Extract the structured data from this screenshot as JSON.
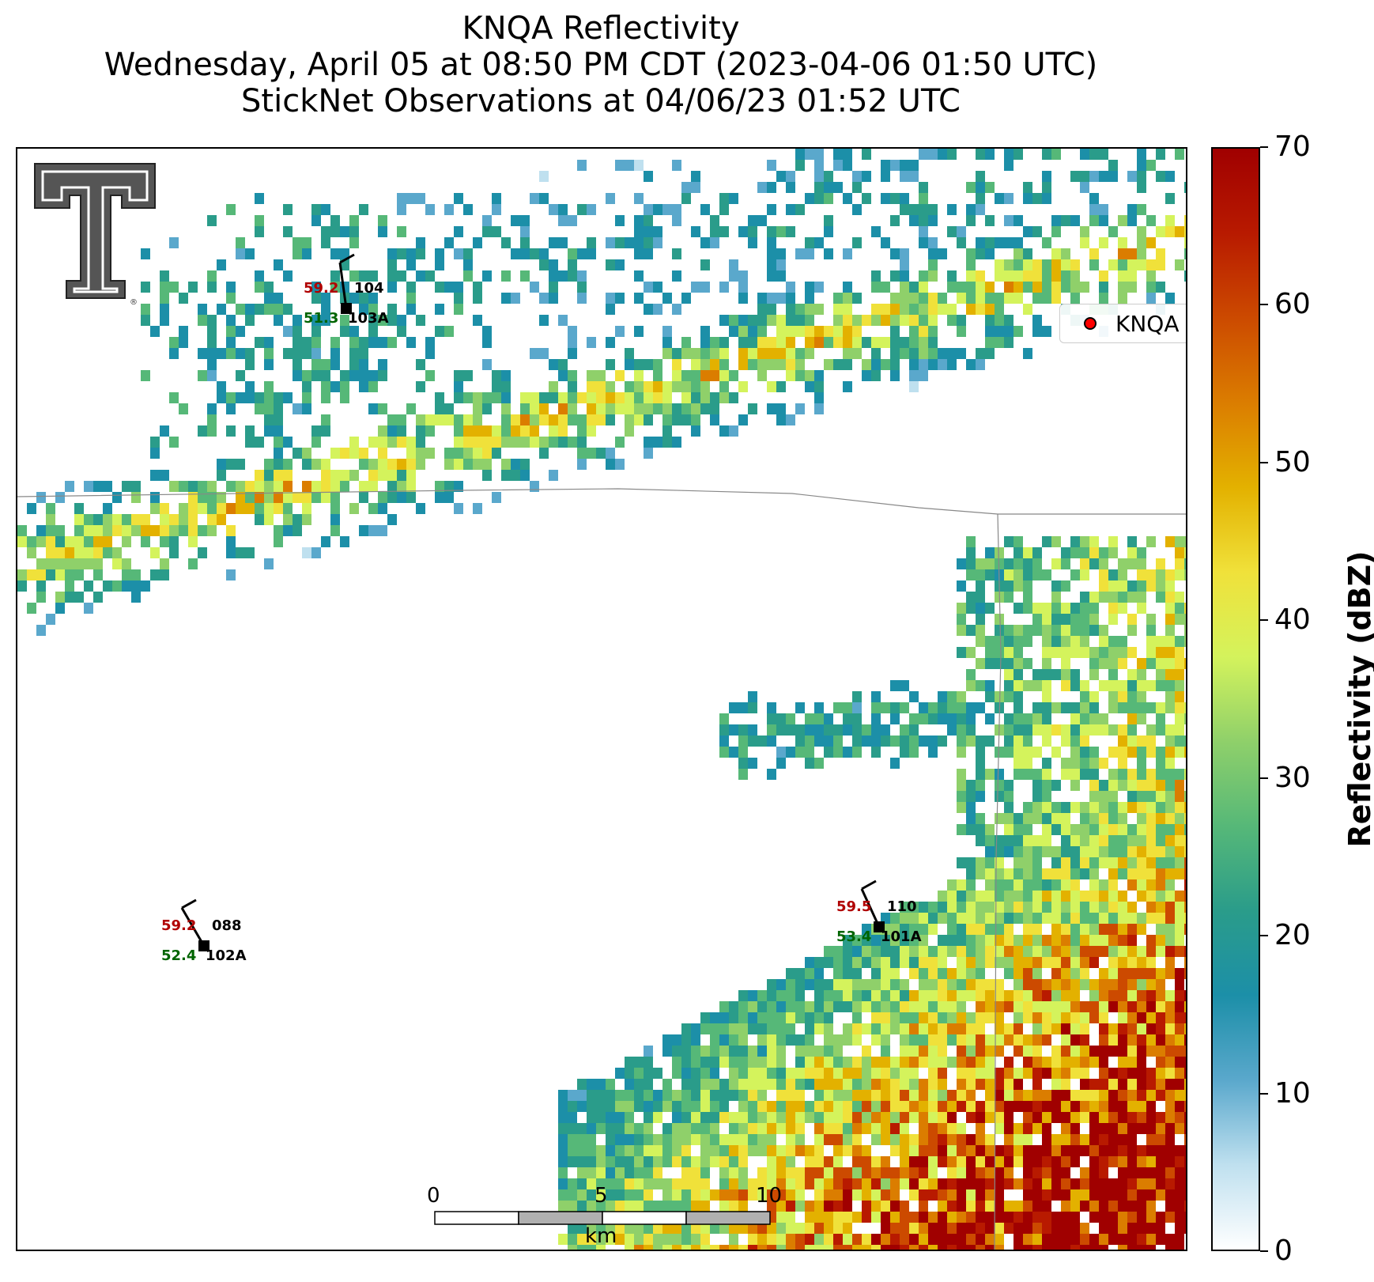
{
  "title": {
    "line1": "KNQA Reflectivity",
    "line2": "Wednesday, April 05 at 08:50 PM CDT (2023-04-06 01:50 UTC)",
    "line3": "StickNet Observations at 04/06/23 01:52 UTC"
  },
  "legend": {
    "label": "KNQA",
    "marker_color": "#ff0000"
  },
  "colorbar": {
    "label": "Reflectivity (dBZ)",
    "min": 0,
    "max": 70,
    "ticks": [
      "0",
      "10",
      "20",
      "30",
      "40",
      "50",
      "60",
      "70"
    ],
    "colors": [
      "#ffffff",
      "#bfe0ef",
      "#5aa8cc",
      "#1c8fa8",
      "#2a9c8a",
      "#56b878",
      "#8fd06a",
      "#d4f35c",
      "#f0e13a",
      "#e3b100",
      "#db7d00",
      "#cc4a00",
      "#b81a00",
      "#a00000"
    ]
  },
  "scale_bar": {
    "labels": [
      "0",
      "5",
      "10"
    ],
    "unit": "km"
  },
  "stations": [
    {
      "id": "104",
      "probe": "103A",
      "temperature": "59.2",
      "dewpoint": "51.3",
      "wind_icon": "wind-barb"
    },
    {
      "id": "088",
      "probe": "102A",
      "temperature": "59.2",
      "dewpoint": "52.4",
      "wind_icon": "wind-barb"
    },
    {
      "id": "110",
      "probe": "101A",
      "temperature": "59.5",
      "dewpoint": "53.4",
      "wind_icon": "wind-barb"
    }
  ],
  "logo": {
    "icon": "texas-tech-double-t-logo",
    "mark": "®"
  },
  "map_features": [
    "county-boundary-lines",
    "reflectivity-bins"
  ]
}
